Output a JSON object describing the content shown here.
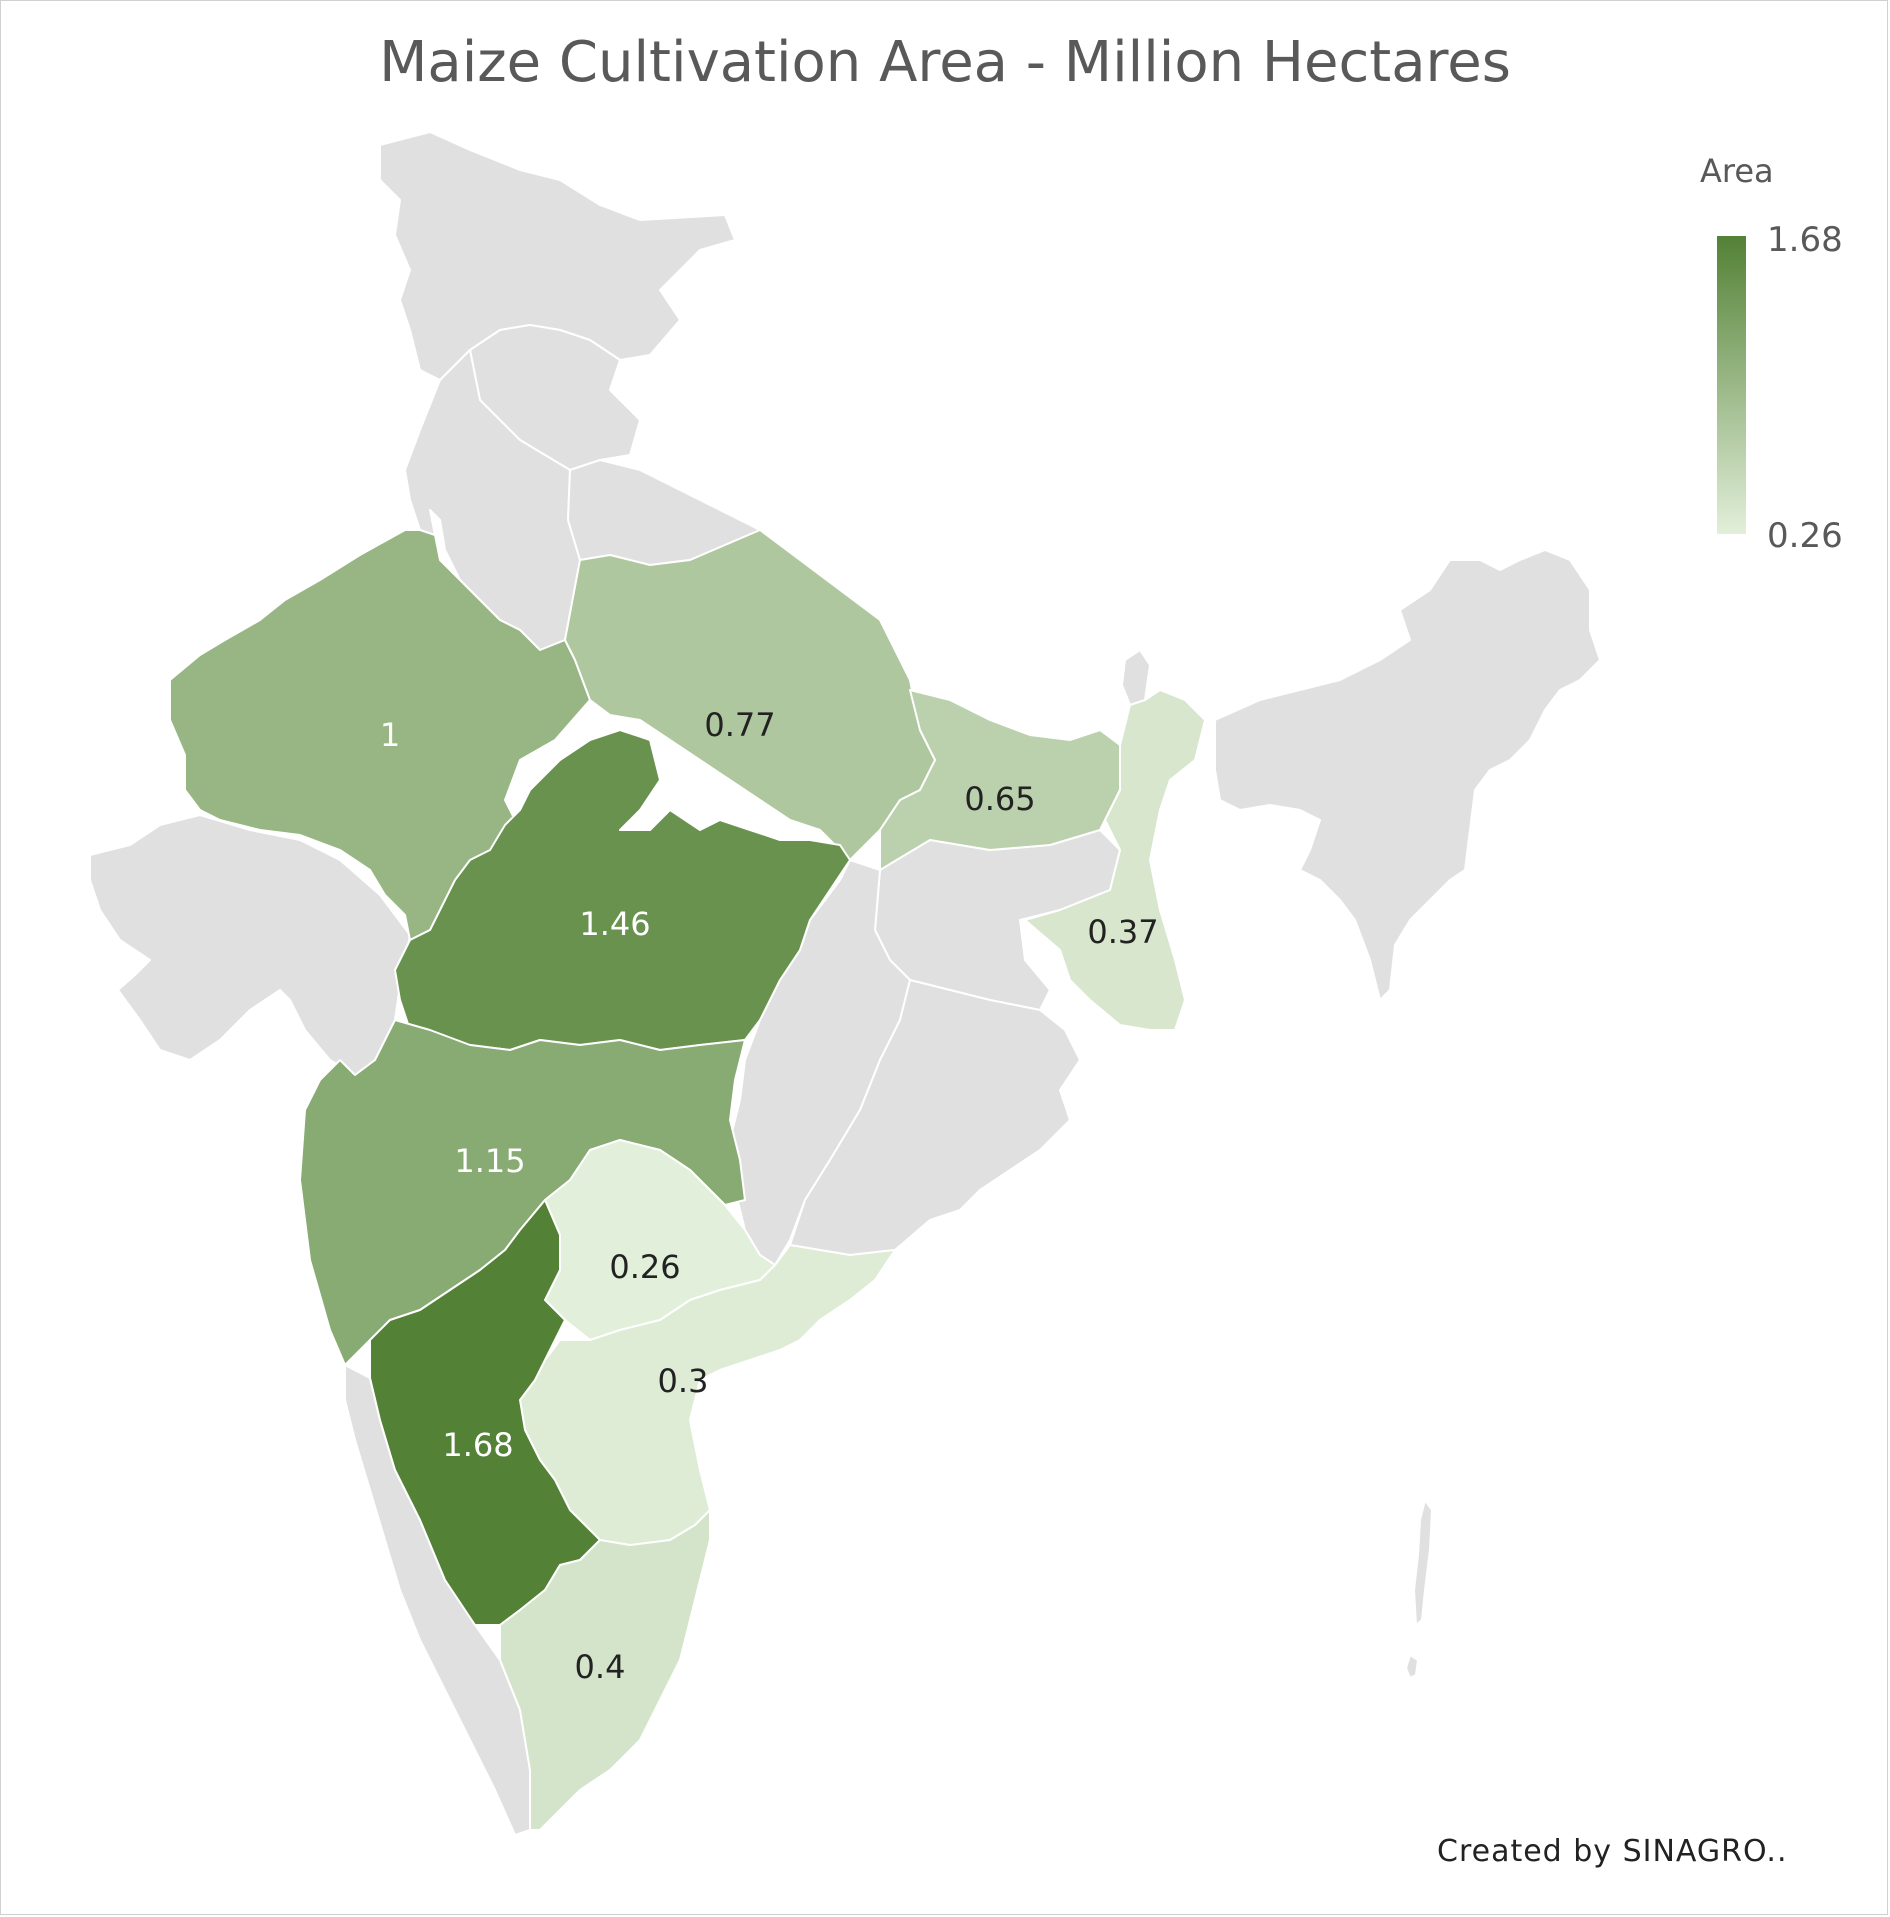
{
  "title": "Maize Cultivation Area - Million Hectares",
  "legend": {
    "title": "Area",
    "max_label": "1.68",
    "min_label": "0.26",
    "color_max": "#538135",
    "color_min": "#e2efda",
    "no_data_color": "#e0e0e0"
  },
  "credit": "Created by SINAGRO..",
  "chart_data": {
    "type": "choropleth",
    "title": "Maize Cultivation Area - Million Hectares",
    "legend_title": "Area",
    "value_range": [
      0.26,
      1.68
    ],
    "legend_placement": "top-right",
    "regions": [
      {
        "name": "Rajasthan",
        "value": 1
      },
      {
        "name": "Uttar Pradesh",
        "value": 0.77
      },
      {
        "name": "Bihar",
        "value": 0.65
      },
      {
        "name": "Madhya Pradesh",
        "value": 1.46
      },
      {
        "name": "West Bengal",
        "value": 0.37
      },
      {
        "name": "Maharashtra",
        "value": 1.15
      },
      {
        "name": "Telangana",
        "value": 0.26
      },
      {
        "name": "Andhra Pradesh",
        "value": 0.3
      },
      {
        "name": "Karnataka",
        "value": 1.68
      },
      {
        "name": "Tamil Nadu",
        "value": 0.4
      }
    ]
  },
  "value_labels": [
    "1",
    "0.77",
    "0.65",
    "1.46",
    "0.37",
    "1.15",
    "0.26",
    "0.3",
    "1.68",
    "0.4"
  ]
}
